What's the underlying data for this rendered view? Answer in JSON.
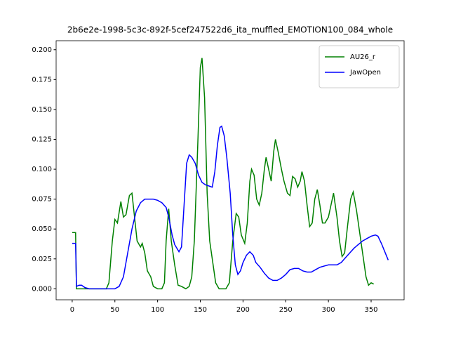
{
  "chart_data": {
    "type": "line",
    "title": "2b6e2e-1998-5c3c-892f-5cef247522d6_ita_muffled_EMOTION100_084_whole",
    "series": [
      {
        "name": "AU26_r",
        "color": "#008000",
        "x": [
          0,
          4,
          5,
          10,
          20,
          30,
          40,
          43,
          47,
          50,
          53,
          57,
          60,
          63,
          67,
          70,
          73,
          76,
          80,
          82,
          85,
          88,
          92,
          95,
          100,
          105,
          108,
          110,
          113,
          116,
          120,
          124,
          128,
          133,
          137,
          140,
          143,
          147,
          150,
          152,
          155,
          158,
          161,
          165,
          168,
          172,
          180,
          184,
          188,
          192,
          195,
          198,
          202,
          205,
          208,
          210,
          213,
          216,
          219,
          222,
          225,
          227,
          230,
          233,
          236,
          238,
          241,
          245,
          248,
          252,
          255,
          258,
          261,
          264,
          267,
          269,
          272,
          275,
          278,
          281,
          284,
          287,
          290,
          293,
          296,
          300,
          303,
          306,
          310,
          313,
          316,
          319,
          322,
          326,
          329,
          333,
          336,
          340,
          344,
          347,
          350,
          353
        ],
        "values": [
          0.047,
          0.047,
          0,
          0,
          0,
          0,
          0,
          0.005,
          0.04,
          0.058,
          0.055,
          0.073,
          0.06,
          0.062,
          0.078,
          0.08,
          0.06,
          0.04,
          0.035,
          0.038,
          0.03,
          0.015,
          0.01,
          0.002,
          0,
          0,
          0.005,
          0.04,
          0.067,
          0.04,
          0.02,
          0.003,
          0.002,
          0,
          0.002,
          0.01,
          0.04,
          0.12,
          0.185,
          0.193,
          0.16,
          0.08,
          0.04,
          0.02,
          0.005,
          0,
          0,
          0.005,
          0.04,
          0.063,
          0.06,
          0.045,
          0.038,
          0.055,
          0.09,
          0.1,
          0.095,
          0.075,
          0.07,
          0.08,
          0.1,
          0.11,
          0.1,
          0.09,
          0.115,
          0.125,
          0.115,
          0.1,
          0.09,
          0.08,
          0.078,
          0.094,
          0.092,
          0.085,
          0.09,
          0.098,
          0.09,
          0.07,
          0.052,
          0.055,
          0.075,
          0.083,
          0.07,
          0.055,
          0.055,
          0.06,
          0.07,
          0.08,
          0.06,
          0.04,
          0.027,
          0.03,
          0.05,
          0.075,
          0.081,
          0.065,
          0.05,
          0.03,
          0.01,
          0.003,
          0.005,
          0.004
        ]
      },
      {
        "name": "JawOpen",
        "color": "#0000ff",
        "x": [
          0,
          4,
          5,
          8,
          11,
          15,
          20,
          30,
          40,
          50,
          55,
          60,
          65,
          70,
          75,
          80,
          85,
          90,
          95,
          100,
          105,
          110,
          113,
          117,
          120,
          125,
          128,
          131,
          134,
          137,
          140,
          144,
          148,
          152,
          156,
          160,
          164,
          167,
          170,
          173,
          175,
          178,
          181,
          185,
          188,
          191,
          194,
          197,
          200,
          204,
          208,
          212,
          215,
          220,
          225,
          230,
          235,
          240,
          245,
          250,
          255,
          260,
          265,
          270,
          275,
          280,
          285,
          290,
          300,
          310,
          315,
          320,
          325,
          330,
          335,
          340,
          345,
          350,
          355,
          358,
          362,
          366,
          370
        ],
        "values": [
          0.038,
          0.038,
          0.002,
          0.003,
          0.003,
          0.001,
          0,
          0,
          0,
          0,
          0.002,
          0.01,
          0.03,
          0.05,
          0.065,
          0.072,
          0.075,
          0.075,
          0.075,
          0.074,
          0.072,
          0.068,
          0.06,
          0.045,
          0.037,
          0.031,
          0.035,
          0.07,
          0.105,
          0.112,
          0.11,
          0.105,
          0.095,
          0.089,
          0.087,
          0.086,
          0.085,
          0.098,
          0.12,
          0.135,
          0.136,
          0.128,
          0.11,
          0.08,
          0.045,
          0.02,
          0.012,
          0.015,
          0.022,
          0.028,
          0.031,
          0.028,
          0.022,
          0.018,
          0.013,
          0.009,
          0.007,
          0.007,
          0.009,
          0.012,
          0.016,
          0.017,
          0.017,
          0.015,
          0.014,
          0.014,
          0.016,
          0.018,
          0.02,
          0.02,
          0.022,
          0.026,
          0.03,
          0.034,
          0.037,
          0.04,
          0.042,
          0.044,
          0.045,
          0.044,
          0.038,
          0.031,
          0.024
        ]
      }
    ],
    "xlim": [
      -18.8,
      388.6
    ],
    "xticks": [
      0,
      50,
      100,
      150,
      200,
      250,
      300,
      350
    ],
    "ylim": [
      -0.0092,
      0.2075
    ],
    "yticks": [
      {
        "value": 0,
        "label": "0.000"
      },
      0.025,
      {
        "value": 0.05,
        "label": "0.050"
      },
      0.075,
      {
        "value": 0.1,
        "label": "0.100"
      },
      0.125,
      {
        "value": 0.15,
        "label": "0.150"
      },
      0.175,
      {
        "value": 0.2,
        "label": "0.200"
      }
    ],
    "legend": "upper right"
  }
}
